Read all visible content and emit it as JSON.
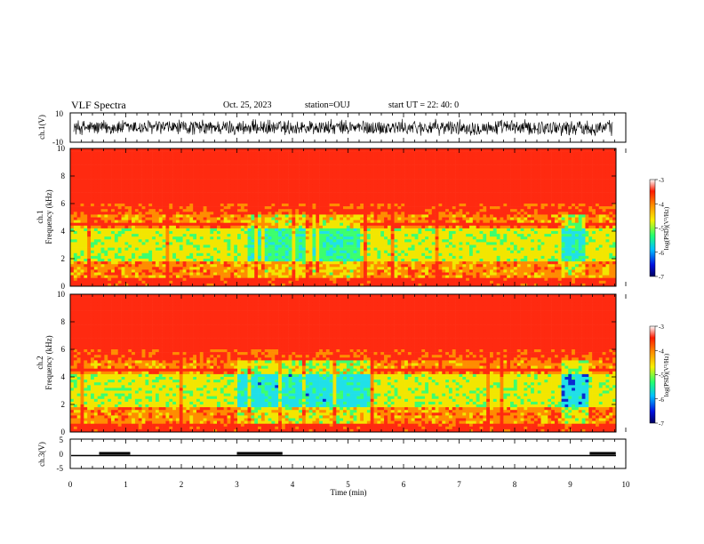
{
  "header": {
    "title": "VLF Spectra",
    "date": "Oct. 25, 2023",
    "station": "station=OUJ",
    "start_time": "start UT =  22: 40: 0"
  },
  "chart_data": [
    {
      "type": "line",
      "name": "ch1-waveform",
      "ylabel": "ch.1(V)",
      "ylim": [
        -10,
        10
      ],
      "yticks": [
        "10",
        "-10"
      ],
      "xlim": [
        0,
        10
      ],
      "description_values": {
        "min_amplitude": -6,
        "max_amplitude": 6
      }
    },
    {
      "type": "heatmap",
      "name": "ch1-spectrogram",
      "ylabel_1": "ch.1",
      "ylabel_2": "Frequency (kHz)",
      "ylim": [
        0,
        10
      ],
      "yticks": [
        0,
        2,
        4,
        6,
        8,
        10
      ],
      "xlim": [
        0,
        10
      ],
      "colorbar": {
        "label": "log(PSD)(V²/Hz)",
        "range": [
          -7,
          -3
        ],
        "ticks": [
          "-3",
          "-4",
          "-5",
          "-6",
          "-7"
        ]
      }
    },
    {
      "type": "heatmap",
      "name": "ch2-spectrogram",
      "ylabel_1": "ch.2",
      "ylabel_2": "Frequency (kHz)",
      "ylim": [
        0,
        10
      ],
      "yticks": [
        0,
        2,
        4,
        6,
        8,
        10
      ],
      "xlim": [
        0,
        10
      ],
      "colorbar": {
        "label": "log(PSD)(V²/Hz)",
        "range": [
          -7,
          -3
        ],
        "ticks": [
          "-3",
          "-4",
          "-5",
          "-6",
          "-7"
        ]
      }
    },
    {
      "type": "line",
      "name": "ch3-status",
      "ylabel": "ch.3(V)",
      "ylim": [
        -5,
        5
      ],
      "yticks": [
        "5",
        "0",
        "-5"
      ],
      "xlim": [
        0,
        10
      ],
      "xlabel": "Time (min)",
      "xticks": [
        "0",
        "1",
        "2",
        "3",
        "4",
        "5",
        "6",
        "7",
        "8",
        "9",
        "10"
      ],
      "baseline_value": 0,
      "high_segments": [
        [
          0.52,
          1.08
        ],
        [
          3.0,
          3.82
        ],
        [
          9.35,
          9.82
        ]
      ]
    }
  ],
  "colors": {
    "red": "#ff2a10",
    "orange": "#ff8c00",
    "yellow": "#f2e600",
    "green": "#3cff6e",
    "cyan": "#20e0e8",
    "blue": "#0a2ad0"
  }
}
